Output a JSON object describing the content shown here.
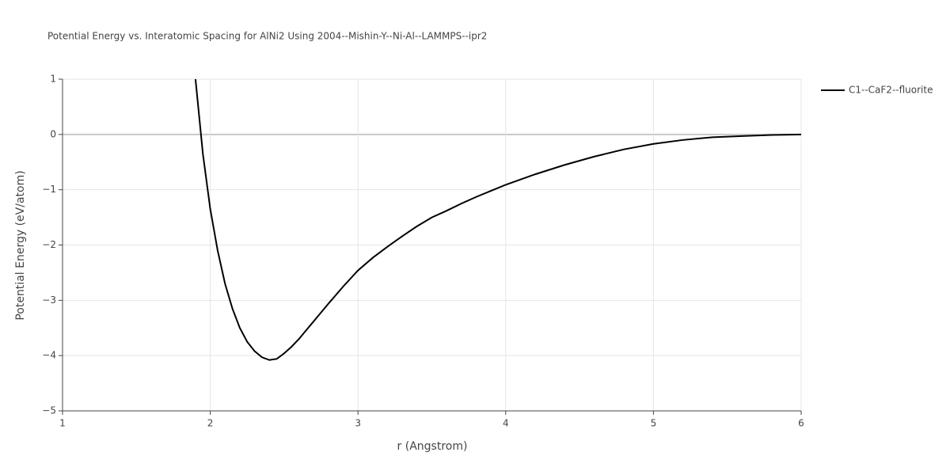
{
  "chart_data": {
    "type": "line",
    "title": "Potential Energy vs. Interatomic Spacing for AlNi2 Using 2004--Mishin-Y--Ni-Al--LAMMPS--ipr2",
    "x_label": "r (Angstrom)",
    "y_label": "Potential Energy (eV/atom)",
    "x": [
      1.9,
      1.95,
      2.0,
      2.05,
      2.1,
      2.15,
      2.2,
      2.25,
      2.3,
      2.35,
      2.4,
      2.45,
      2.5,
      2.55,
      2.6,
      2.7,
      2.8,
      2.9,
      3.0,
      3.1,
      3.2,
      3.3,
      3.4,
      3.5,
      3.6,
      3.7,
      3.8,
      3.9,
      4.0,
      4.2,
      4.4,
      4.6,
      4.8,
      5.0,
      5.2,
      5.4,
      5.6,
      5.8,
      6.0
    ],
    "series": [
      {
        "name": "C1--CaF2--fluorite",
        "color": "#000000",
        "values": [
          1.0,
          -0.35,
          -1.35,
          -2.1,
          -2.7,
          -3.15,
          -3.5,
          -3.75,
          -3.92,
          -4.03,
          -4.08,
          -4.06,
          -3.96,
          -3.84,
          -3.7,
          -3.38,
          -3.06,
          -2.75,
          -2.46,
          -2.23,
          -2.03,
          -1.84,
          -1.66,
          -1.5,
          -1.38,
          -1.25,
          -1.13,
          -1.02,
          -0.91,
          -0.72,
          -0.55,
          -0.4,
          -0.27,
          -0.17,
          -0.1,
          -0.05,
          -0.03,
          -0.01,
          0.0
        ]
      }
    ],
    "xlim": [
      1,
      6
    ],
    "ylim": [
      -5,
      1
    ],
    "xticks": [
      1,
      2,
      3,
      4,
      5,
      6
    ],
    "yticks": [
      1,
      0,
      {
        "value": -1,
        "label": "−1"
      },
      {
        "value": -2,
        "label": "−2"
      },
      {
        "value": -3,
        "label": "−3"
      },
      {
        "value": -4,
        "label": "−4"
      },
      {
        "value": -5,
        "label": "−5"
      }
    ],
    "grid": true,
    "legend": "right"
  }
}
